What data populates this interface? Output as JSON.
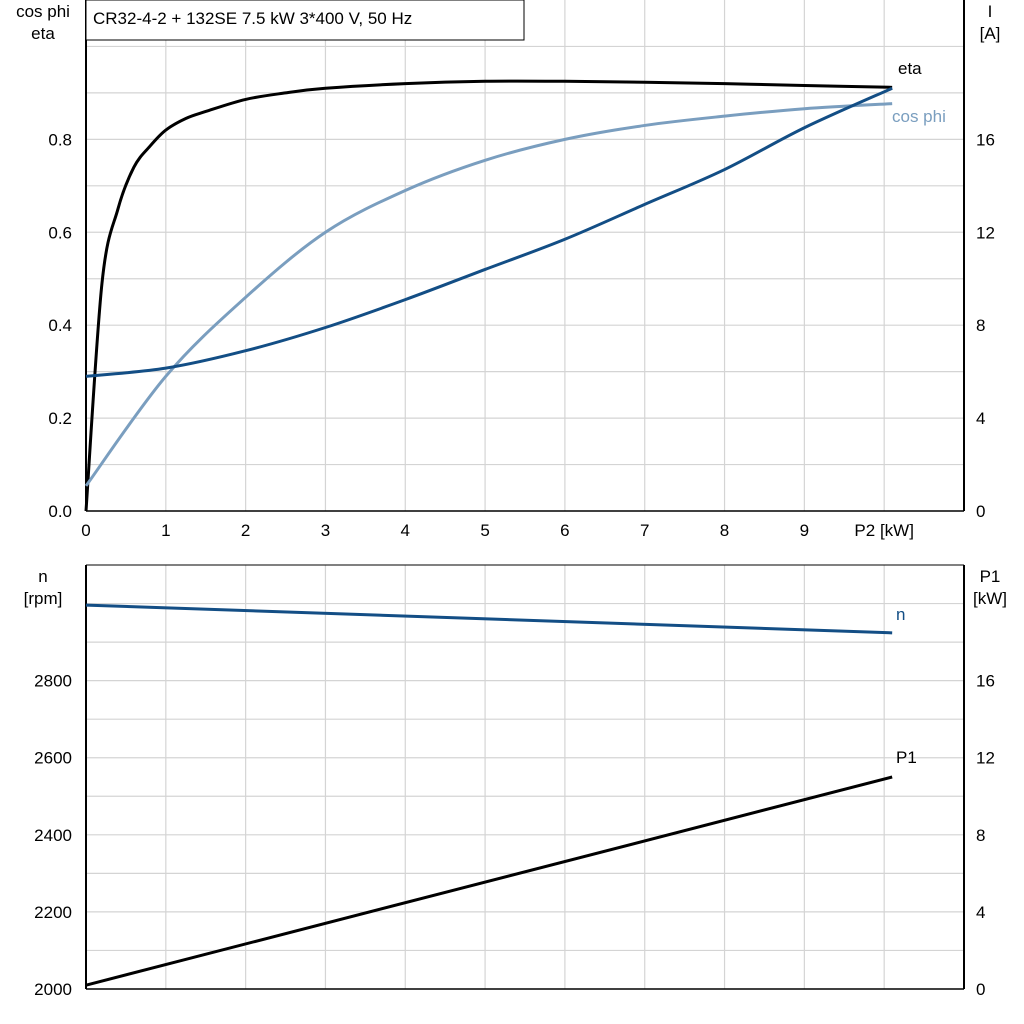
{
  "chart_data": [
    {
      "type": "line",
      "title": "CR32-4-2 + 132SE   7.5 kW   3*400 V, 50 Hz",
      "xlabel": "P2 [kW]",
      "ylabel_left": [
        "cos phi",
        "eta"
      ],
      "ylabel_right": [
        "I",
        "[A]"
      ],
      "xlim": [
        0,
        11
      ],
      "ylim_left": [
        0,
        1.1
      ],
      "ylim_right": [
        0,
        22
      ],
      "x_ticks": [
        "0",
        "1",
        "2",
        "3",
        "4",
        "5",
        "6",
        "7",
        "8",
        "9"
      ],
      "y_ticks_left": [
        "0.0",
        "0.2",
        "0.4",
        "0.6",
        "0.8"
      ],
      "y_ticks_right": [
        "0",
        "4",
        "8",
        "12",
        "16"
      ],
      "grid": true,
      "series": [
        {
          "name": "eta",
          "axis": "left",
          "color": "#000000",
          "x": [
            0,
            0.2,
            0.4,
            0.6,
            0.8,
            1.0,
            1.25,
            1.5,
            2,
            2.5,
            3,
            4,
            5,
            6,
            7,
            8,
            9,
            10.1
          ],
          "y": [
            0.0,
            0.49,
            0.65,
            0.74,
            0.785,
            0.82,
            0.845,
            0.86,
            0.886,
            0.9,
            0.91,
            0.92,
            0.925,
            0.925,
            0.923,
            0.92,
            0.916,
            0.912
          ]
        },
        {
          "name": "cos phi",
          "axis": "left",
          "color": "#7a9ebf",
          "x": [
            0,
            1,
            2,
            3,
            4,
            5,
            6,
            7,
            8,
            9,
            10.1
          ],
          "y": [
            0.054,
            0.29,
            0.46,
            0.6,
            0.69,
            0.755,
            0.8,
            0.83,
            0.85,
            0.866,
            0.877
          ]
        },
        {
          "name": "I",
          "axis": "right",
          "color": "#134e85",
          "x": [
            0,
            1,
            2,
            3,
            4,
            5,
            6,
            7,
            8,
            9,
            10.1
          ],
          "y": [
            5.8,
            6.15,
            6.9,
            7.9,
            9.1,
            10.4,
            11.7,
            13.2,
            14.7,
            16.5,
            18.2
          ]
        }
      ],
      "annotations": [
        "eta",
        "cos phi"
      ]
    },
    {
      "type": "line",
      "ylabel_left": [
        "n",
        "[rpm]"
      ],
      "ylabel_right": [
        "P1",
        "[kW]"
      ],
      "xlim": [
        0,
        11
      ],
      "ylim_left": [
        2000,
        3100
      ],
      "ylim_right": [
        0,
        22
      ],
      "y_ticks_left": [
        "2000",
        "2200",
        "2400",
        "2600",
        "2800"
      ],
      "y_ticks_right": [
        "0",
        "4",
        "8",
        "12",
        "16"
      ],
      "grid": true,
      "series": [
        {
          "name": "n",
          "axis": "left",
          "color": "#134e85",
          "x": [
            0,
            10.1
          ],
          "y": [
            2996,
            2924
          ]
        },
        {
          "name": "P1",
          "axis": "right",
          "color": "#000000",
          "x": [
            0,
            10.1
          ],
          "y": [
            0.2,
            11.0
          ]
        }
      ],
      "annotations": [
        "n",
        "P1"
      ]
    }
  ]
}
